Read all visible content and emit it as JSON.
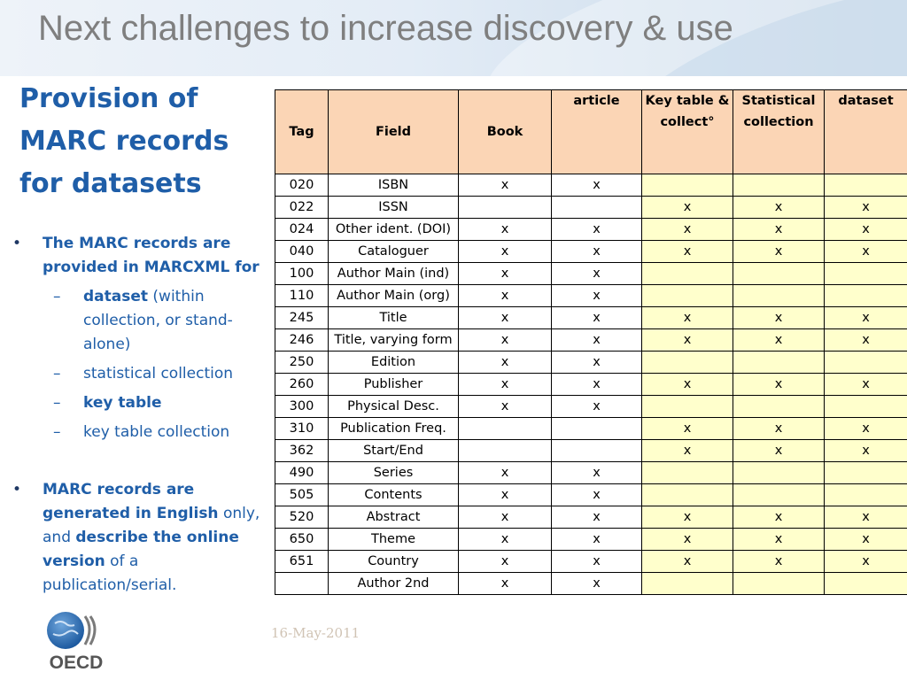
{
  "slide": {
    "title": "Next challenges to increase discovery & use",
    "heading": "Provision of MARC records for datasets"
  },
  "bullets": {
    "b1_text": "The MARC records are provided in MARCXML for",
    "sub1_bold": "dataset",
    "sub1_rest": " (within collection, or stand-alone)",
    "sub2": "statistical collection",
    "sub3_bold": "key table",
    "sub4": "key table collection",
    "b2_part1": "MARC records are generated in English",
    "b2_part2": " only, and ",
    "b2_part3": "describe the online version",
    "b2_part4": " of a publication/serial."
  },
  "footer": {
    "date": "16-May-2011",
    "logo_text": "OECD"
  },
  "table": {
    "headers": [
      "Tag",
      "Field",
      "Book",
      "article",
      "Key table & collect°",
      "Statistical collection",
      "dataset"
    ],
    "rows": [
      {
        "tag": "020",
        "field": "ISBN",
        "book": "x",
        "article": "x",
        "key": "",
        "stat": "",
        "dataset": ""
      },
      {
        "tag": "022",
        "field": "ISSN",
        "book": "",
        "article": "",
        "key": "x",
        "stat": "x",
        "dataset": "x"
      },
      {
        "tag": "024",
        "field": "Other ident. (DOI)",
        "book": "x",
        "article": "x",
        "key": "x",
        "stat": "x",
        "dataset": "x"
      },
      {
        "tag": "040",
        "field": "Cataloguer",
        "book": "x",
        "article": "x",
        "key": "x",
        "stat": "x",
        "dataset": "x"
      },
      {
        "tag": "100",
        "field": "Author Main (ind)",
        "book": "x",
        "article": "x",
        "key": "",
        "stat": "",
        "dataset": ""
      },
      {
        "tag": "110",
        "field": "Author Main (org)",
        "book": "x",
        "article": "x",
        "key": "",
        "stat": "",
        "dataset": ""
      },
      {
        "tag": "245",
        "field": "Title",
        "book": "x",
        "article": "x",
        "key": "x",
        "stat": "x",
        "dataset": "x"
      },
      {
        "tag": "246",
        "field": "Title, varying form",
        "book": "x",
        "article": "x",
        "key": "x",
        "stat": "x",
        "dataset": "x"
      },
      {
        "tag": "250",
        "field": "Edition",
        "book": "x",
        "article": "x",
        "key": "",
        "stat": "",
        "dataset": ""
      },
      {
        "tag": "260",
        "field": "Publisher",
        "book": "x",
        "article": "x",
        "key": "x",
        "stat": "x",
        "dataset": "x"
      },
      {
        "tag": "300",
        "field": "Physical Desc.",
        "book": "x",
        "article": "x",
        "key": "",
        "stat": "",
        "dataset": ""
      },
      {
        "tag": "310",
        "field": "Publication Freq.",
        "book": "",
        "article": "",
        "key": "x",
        "stat": "x",
        "dataset": "x"
      },
      {
        "tag": "362",
        "field": "Start/End",
        "book": "",
        "article": "",
        "key": "x",
        "stat": "x",
        "dataset": "x"
      },
      {
        "tag": "490",
        "field": "Series",
        "book": "x",
        "article": "x",
        "key": "",
        "stat": "",
        "dataset": ""
      },
      {
        "tag": "505",
        "field": "Contents",
        "book": "x",
        "article": "x",
        "key": "",
        "stat": "",
        "dataset": ""
      },
      {
        "tag": "520",
        "field": "Abstract",
        "book": "x",
        "article": "x",
        "key": "x",
        "stat": "x",
        "dataset": "x"
      },
      {
        "tag": "650",
        "field": "Theme",
        "book": "x",
        "article": "x",
        "key": "x",
        "stat": "x",
        "dataset": "x"
      },
      {
        "tag": "651",
        "field": "Country",
        "book": "x",
        "article": "x",
        "key": "x",
        "stat": "x",
        "dataset": "x"
      },
      {
        "tag": "",
        "field": "Author 2nd",
        "book": "x",
        "article": "x",
        "key": "",
        "stat": "",
        "dataset": ""
      }
    ]
  },
  "colors": {
    "title_gray": "#7f7f7f",
    "heading_blue": "#1f5ea8",
    "header_fill": "#fbd5b5",
    "yellow_fill": "#ffffcc",
    "oecd_globe_blue": "#2a6bb3",
    "oecd_text": "#555555"
  }
}
